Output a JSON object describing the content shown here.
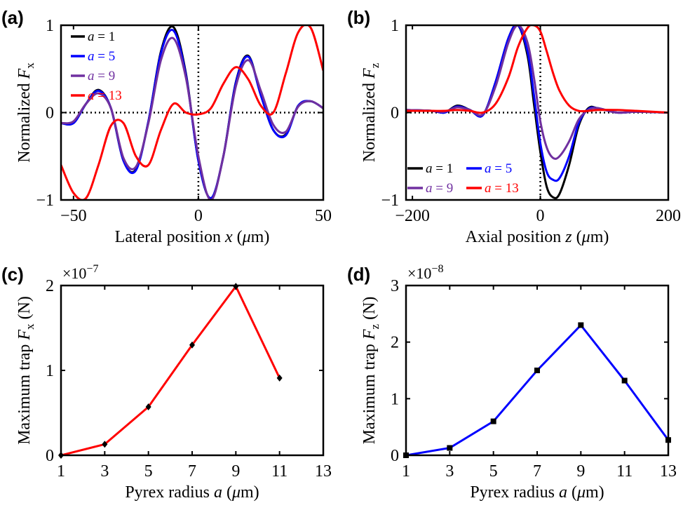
{
  "panels": [
    {
      "id": "a",
      "label": "(a)"
    },
    {
      "id": "b",
      "label": "(b)"
    },
    {
      "id": "c",
      "label": "(c)"
    },
    {
      "id": "d",
      "label": "(d)"
    }
  ],
  "colors": {
    "a1": "#000000",
    "a5": "#0000ff",
    "a9": "#7030a0",
    "a13": "#ff0000",
    "c_line": "#ff0000",
    "d_line": "#0000ff",
    "marker": "#000000"
  },
  "chart_data": [
    {
      "panel": "a",
      "type": "line",
      "xlabel_parts": [
        "Lateral position ",
        "x",
        " (",
        "μ",
        "m)"
      ],
      "ylabel_parts": [
        "Normalized ",
        "F",
        "x"
      ],
      "xlim": [
        -55,
        50
      ],
      "ylim": [
        -1,
        1
      ],
      "xticks": [
        -50,
        0,
        50
      ],
      "xtick_labels": [
        "−50",
        "0",
        "50"
      ],
      "yticks": [
        -1,
        0,
        1
      ],
      "ytick_labels": [
        "−1",
        "0",
        "1"
      ],
      "reference_lines": {
        "x": 0,
        "y": 0
      },
      "series": [
        {
          "name": "a = 1",
          "color": "#000000",
          "x": [
            -55,
            -50,
            -45,
            -40,
            -35,
            -30,
            -25,
            -20,
            -15,
            -10,
            -5,
            0,
            5,
            10,
            15,
            20,
            25,
            30,
            35,
            40,
            45,
            50
          ],
          "y": [
            -0.12,
            -0.12,
            0.1,
            0.26,
            0.05,
            -0.55,
            -0.65,
            -0.1,
            0.7,
            0.98,
            0.45,
            -0.55,
            -0.98,
            -0.5,
            0.35,
            0.65,
            0.2,
            -0.2,
            -0.25,
            0.08,
            0.13,
            0.05
          ]
        },
        {
          "name": "a = 5",
          "color": "#0000ff",
          "x": [
            -55,
            -50,
            -45,
            -40,
            -35,
            -30,
            -25,
            -20,
            -15,
            -10,
            -5,
            0,
            5,
            10,
            15,
            20,
            25,
            30,
            35,
            40,
            45,
            50
          ],
          "y": [
            -0.12,
            -0.12,
            0.1,
            0.25,
            0.05,
            -0.55,
            -0.66,
            -0.1,
            0.68,
            0.94,
            0.43,
            -0.55,
            -0.98,
            -0.5,
            0.34,
            0.64,
            0.2,
            -0.2,
            -0.26,
            0.08,
            0.13,
            0.05
          ]
        },
        {
          "name": "a = 9",
          "color": "#7030a0",
          "x": [
            -55,
            -50,
            -45,
            -40,
            -35,
            -30,
            -25,
            -20,
            -15,
            -10,
            -5,
            0,
            5,
            10,
            15,
            20,
            25,
            30,
            35,
            40,
            45,
            50
          ],
          "y": [
            -0.12,
            -0.1,
            0.1,
            0.22,
            0.05,
            -0.52,
            -0.62,
            -0.12,
            0.6,
            0.85,
            0.4,
            -0.5,
            -1.0,
            -0.5,
            0.3,
            0.6,
            0.25,
            -0.14,
            -0.22,
            0.07,
            0.13,
            0.05
          ]
        },
        {
          "name": "a = 13",
          "color": "#ff0000",
          "x": [
            -55,
            -50,
            -45,
            -40,
            -35,
            -30,
            -25,
            -20,
            -15,
            -10,
            -5,
            0,
            5,
            10,
            15,
            20,
            25,
            30,
            35,
            40,
            45,
            50
          ],
          "y": [
            -0.6,
            -0.92,
            -0.98,
            -0.6,
            -0.15,
            -0.12,
            -0.5,
            -0.6,
            -0.2,
            0.1,
            0.0,
            -0.02,
            0.05,
            0.33,
            0.52,
            0.38,
            0.08,
            0.0,
            0.45,
            0.92,
            0.97,
            0.48
          ]
        }
      ]
    },
    {
      "panel": "b",
      "type": "line",
      "xlabel_parts": [
        "Axial position ",
        "z",
        " (",
        "μ",
        "m)"
      ],
      "ylabel_parts": [
        "Normalized ",
        "F",
        "z"
      ],
      "xlim": [
        -210,
        200
      ],
      "ylim": [
        -1,
        1
      ],
      "xticks": [
        -200,
        0,
        200
      ],
      "xtick_labels": [
        "−200",
        "0",
        "200"
      ],
      "yticks": [
        -1,
        0,
        1
      ],
      "ytick_labels": [
        "−1",
        "0",
        "1"
      ],
      "reference_lines": {
        "x": 0,
        "y": 0
      },
      "series": [
        {
          "name": "a = 1",
          "color": "#000000",
          "x": [
            -210,
            -170,
            -150,
            -130,
            -110,
            -90,
            -70,
            -50,
            -35,
            -20,
            -10,
            0,
            10,
            20,
            30,
            45,
            60,
            75,
            90,
            120,
            150,
            200
          ],
          "y": [
            0.03,
            0.02,
            0.0,
            0.08,
            0.03,
            -0.03,
            0.35,
            0.85,
            1.0,
            0.65,
            0.1,
            -0.45,
            -0.85,
            -0.97,
            -0.93,
            -0.6,
            -0.15,
            0.05,
            0.05,
            0.0,
            0.01,
            0.0
          ]
        },
        {
          "name": "a = 5",
          "color": "#0000ff",
          "x": [
            -210,
            -170,
            -150,
            -130,
            -110,
            -90,
            -70,
            -50,
            -35,
            -20,
            -10,
            0,
            10,
            20,
            30,
            45,
            60,
            75,
            90,
            120,
            150,
            200
          ],
          "y": [
            0.03,
            0.02,
            0.0,
            0.07,
            0.03,
            -0.03,
            0.35,
            0.85,
            1.0,
            0.7,
            0.2,
            -0.35,
            -0.68,
            -0.77,
            -0.75,
            -0.5,
            -0.12,
            0.04,
            0.05,
            0.0,
            0.01,
            0.0
          ]
        },
        {
          "name": "a = 9",
          "color": "#7030a0",
          "x": [
            -210,
            -170,
            -150,
            -130,
            -110,
            -90,
            -70,
            -50,
            -35,
            -20,
            -10,
            0,
            10,
            20,
            30,
            45,
            60,
            75,
            90,
            120,
            150,
            200
          ],
          "y": [
            0.03,
            0.02,
            0.01,
            0.06,
            0.03,
            -0.02,
            0.3,
            0.8,
            1.0,
            0.8,
            0.4,
            -0.1,
            -0.4,
            -0.52,
            -0.5,
            -0.33,
            -0.08,
            0.03,
            0.05,
            0.0,
            0.01,
            0.0
          ]
        },
        {
          "name": "a = 13",
          "color": "#ff0000",
          "x": [
            -210,
            -170,
            -150,
            -130,
            -110,
            -90,
            -70,
            -50,
            -35,
            -20,
            -10,
            0,
            10,
            20,
            30,
            45,
            60,
            75,
            90,
            120,
            150,
            200
          ],
          "y": [
            0.02,
            0.02,
            0.02,
            0.03,
            0.02,
            0.0,
            0.1,
            0.4,
            0.75,
            0.97,
            1.0,
            0.93,
            0.7,
            0.45,
            0.25,
            0.08,
            0.02,
            0.02,
            0.03,
            0.03,
            0.02,
            0.0
          ]
        }
      ],
      "legend_layout": [
        [
          "a = 1",
          "a = 5"
        ],
        [
          "a = 9",
          "a = 13"
        ]
      ]
    },
    {
      "panel": "c",
      "type": "line",
      "xlabel_parts": [
        "Pyrex radius ",
        "a",
        " (",
        "μ",
        "m)"
      ],
      "ylabel_parts": [
        "Maximum trap ",
        "F",
        "x",
        " (N)"
      ],
      "multiplier": "×10",
      "multiplier_exp": "−7",
      "xlim": [
        1,
        13
      ],
      "ylim": [
        0,
        2
      ],
      "xticks": [
        1,
        3,
        5,
        7,
        9,
        11,
        13
      ],
      "yticks": [
        0,
        1,
        2
      ],
      "ytick_labels": [
        "0",
        "1",
        "2"
      ],
      "series": [
        {
          "color": "#ff0000",
          "marker": "diamond",
          "x": [
            1,
            3,
            5,
            7,
            9,
            11
          ],
          "y": [
            0,
            0.13,
            0.57,
            1.3,
            1.99,
            0.91
          ]
        }
      ]
    },
    {
      "panel": "d",
      "type": "line",
      "xlabel_parts": [
        "Pyrex radius ",
        "a",
        " (",
        "μ",
        "m)"
      ],
      "ylabel_parts": [
        "Maximum trap ",
        "F",
        "z",
        " (N)"
      ],
      "multiplier": "×10",
      "multiplier_exp": "−8",
      "xlim": [
        1,
        13
      ],
      "ylim": [
        0,
        3
      ],
      "xticks": [
        1,
        3,
        5,
        7,
        9,
        11,
        13
      ],
      "yticks": [
        0,
        1,
        2,
        3
      ],
      "ytick_labels": [
        "0",
        "1",
        "2",
        "3"
      ],
      "series": [
        {
          "color": "#0000ff",
          "marker": "square",
          "x": [
            1,
            3,
            5,
            7,
            9,
            11,
            13
          ],
          "y": [
            0,
            0.13,
            0.6,
            1.5,
            2.3,
            1.32,
            0.27
          ]
        }
      ]
    }
  ]
}
